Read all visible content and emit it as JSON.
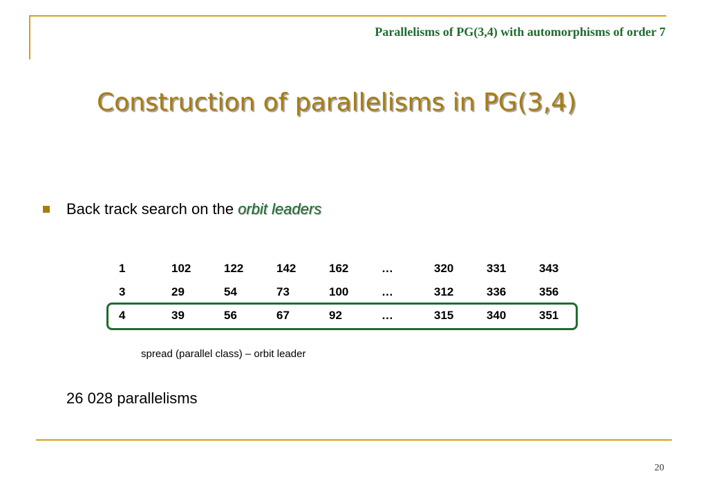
{
  "header": {
    "title": "Parallelisms of PG(3,4) with automorphisms of order 7"
  },
  "slide": {
    "title": "Construction of parallelisms in PG(3,4)"
  },
  "bullet": {
    "text": "Back track search on the",
    "emphasis": "orbit leaders"
  },
  "table": {
    "rows": [
      [
        "1",
        "102",
        "122",
        "142",
        "162",
        "…",
        "320",
        "331",
        "343"
      ],
      [
        "3",
        "29",
        "54",
        "73",
        "100",
        "…",
        "312",
        "336",
        "356"
      ],
      [
        "4",
        "39",
        "56",
        "67",
        "92",
        "…",
        "315",
        "340",
        "351"
      ]
    ],
    "highlighted_row": 2
  },
  "caption": "spread (parallel class) – orbit leader",
  "count": "26 028 parallelisms",
  "footer": {
    "page_number": "20"
  },
  "colors": {
    "accent_gold": "#d4a017",
    "title_gold": "#a87d0f",
    "green": "#1f6b2e"
  }
}
